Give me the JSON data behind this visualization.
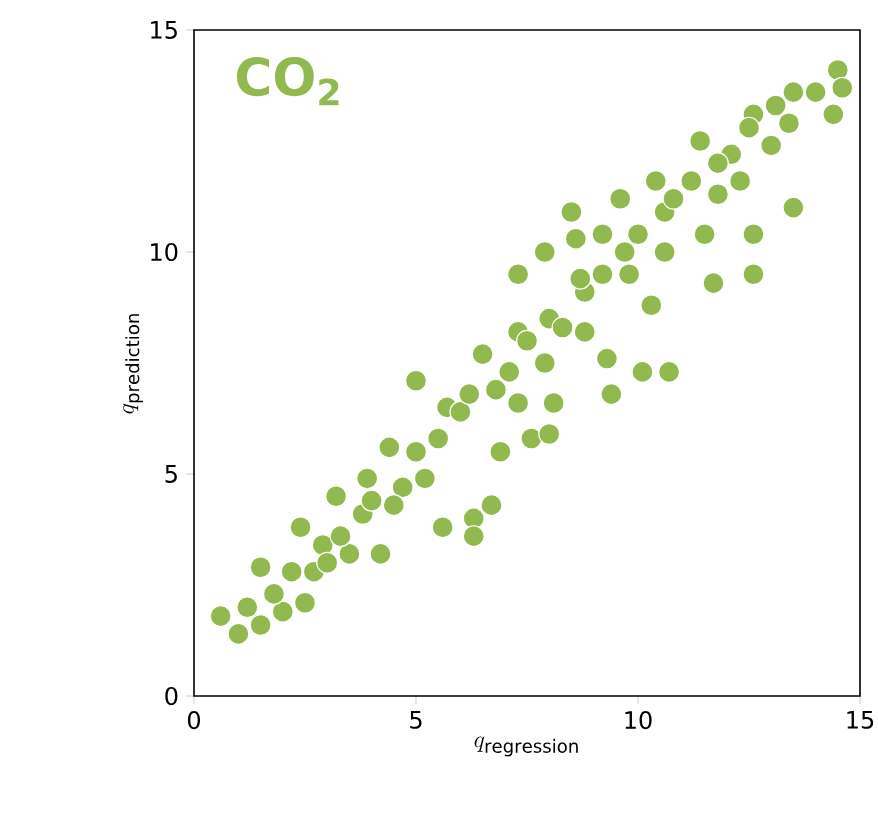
{
  "chart_data": {
    "type": "scatter",
    "xlabel": "q_{\\mathrm{regression}}",
    "ylabel": "q_{\\mathrm{prediction}}",
    "annotations": [
      "CO$_{2}$"
    ],
    "xlim": [
      0,
      15
    ],
    "ylim": [
      0,
      15
    ],
    "xticks": [
      0,
      5,
      10,
      15
    ],
    "yticks": [
      0,
      5,
      10,
      15
    ],
    "grid": false,
    "marker": "circle",
    "series": [
      {
        "color": "#92b94f",
        "x": [
          0.6,
          1.0,
          1.5,
          1.2,
          2.0,
          1.5,
          2.5,
          2.2,
          2.9,
          2.4,
          3.2,
          3.8,
          3.5,
          4.2,
          3.9,
          4.4,
          4.7,
          5.2,
          5.0,
          5.6,
          6.3,
          6.3,
          6.7,
          5.7,
          6.0,
          6.5,
          6.9,
          7.3,
          7.6,
          8.0,
          8.1,
          7.9,
          7.3,
          7.9,
          7.3,
          8.5,
          8.6,
          9.2,
          8.8,
          8.8,
          9.3,
          9.4,
          9.6,
          10.1,
          10.7,
          9.8,
          10.3,
          10.6,
          10.4,
          10.6,
          11.4,
          11.7,
          11.5,
          11.8,
          12.1,
          12.3,
          12.6,
          12.6,
          12.6,
          13.0,
          13.1,
          13.4,
          13.5,
          14.0,
          14.5,
          14.6,
          14.4,
          1.8,
          2.7,
          3.0,
          3.3,
          4.0,
          4.5,
          5.0,
          5.5,
          6.2,
          6.8,
          7.1,
          7.5,
          8.0,
          8.3,
          8.7,
          9.2,
          9.7,
          10.0,
          10.8,
          11.2,
          11.8,
          12.5,
          13.5
        ],
        "values": [
          1.8,
          1.4,
          1.6,
          2.0,
          1.9,
          2.9,
          2.1,
          2.8,
          3.4,
          3.8,
          4.5,
          4.1,
          3.2,
          3.2,
          4.9,
          5.6,
          4.7,
          4.9,
          7.1,
          3.8,
          4.0,
          3.6,
          4.3,
          6.5,
          6.4,
          7.7,
          5.5,
          6.6,
          5.8,
          5.9,
          6.6,
          7.5,
          9.5,
          10.0,
          8.2,
          10.9,
          10.3,
          10.4,
          9.1,
          8.2,
          7.6,
          6.8,
          11.2,
          7.3,
          7.3,
          9.5,
          8.8,
          10.0,
          11.6,
          10.9,
          12.5,
          9.3,
          10.4,
          11.3,
          12.2,
          11.6,
          10.4,
          9.5,
          13.1,
          12.4,
          13.3,
          12.9,
          11.0,
          13.6,
          14.1,
          13.7,
          13.1,
          2.3,
          2.8,
          3.0,
          3.6,
          4.4,
          4.3,
          5.5,
          5.8,
          6.8,
          6.9,
          7.3,
          8.0,
          8.5,
          8.3,
          9.4,
          9.5,
          10.0,
          10.4,
          11.2,
          11.6,
          12.0,
          12.8,
          13.6
        ]
      }
    ]
  }
}
